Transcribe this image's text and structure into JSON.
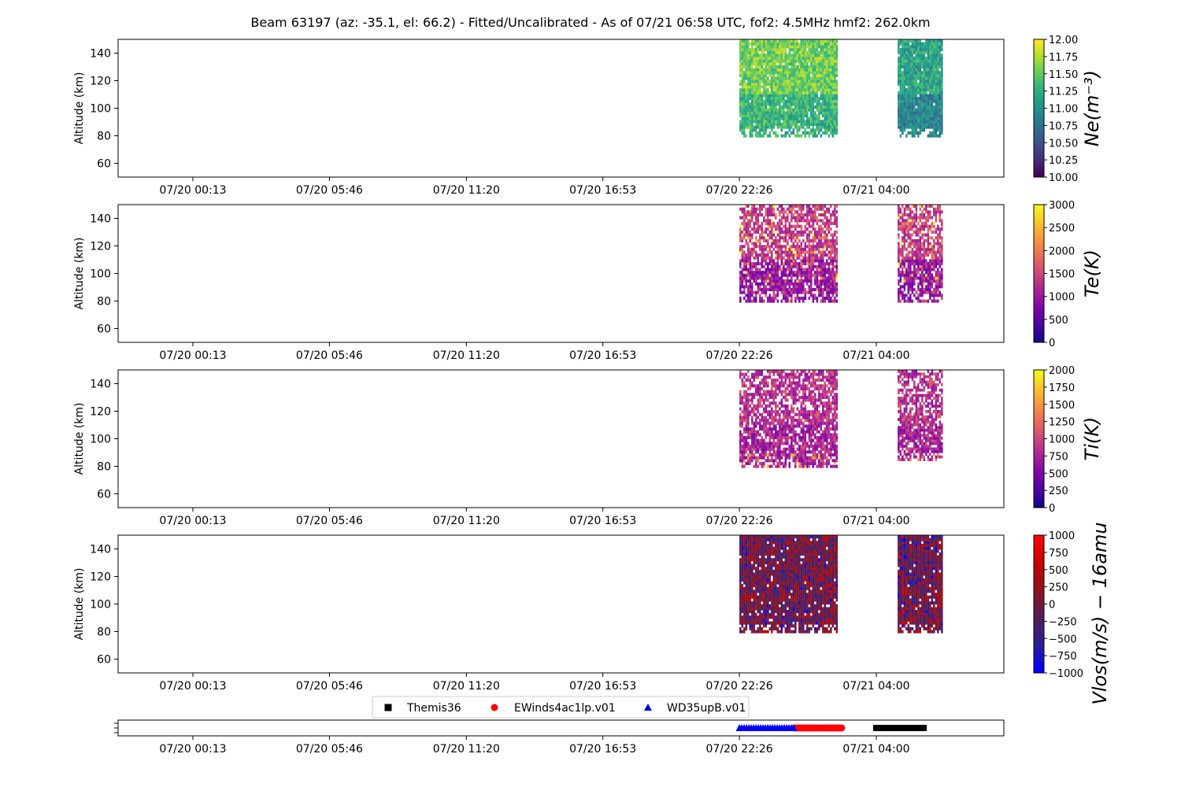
{
  "title": "Beam 63197 (az: -35.1, el: 66.2) - Fitted/Uncalibrated - As of 07/21 06:58 UTC, fof2: 4.5MHz  hmf2: 262.0km",
  "chart_data": [
    {
      "type": "heatmap",
      "ylabel": "Altitude (km)",
      "ylim": [
        50,
        150
      ],
      "yticks": [
        60,
        80,
        100,
        120,
        140
      ],
      "x_range": [
        "07/19 19:55",
        "07/21 08:15"
      ],
      "xticks": [
        "07/20 00:13",
        "07/20 05:46",
        "07/20 11:20",
        "07/20 16:53",
        "07/20 22:26",
        "07/21 04:00"
      ],
      "data_blocks": [
        {
          "x": [
            "07/20 22:26",
            "07/21 02:26"
          ],
          "y": [
            79,
            150
          ]
        },
        {
          "x": [
            "07/21 04:52",
            "07/21 06:40"
          ],
          "y": [
            79,
            150
          ]
        }
      ],
      "colorbar": {
        "label": "Ne(m⁻³)",
        "range": [
          10.0,
          12.0
        ],
        "ticks": [
          "10.00",
          "10.25",
          "10.50",
          "10.75",
          "11.00",
          "11.25",
          "11.50",
          "11.75",
          "12.00"
        ],
        "colormap": "viridis"
      }
    },
    {
      "type": "heatmap",
      "ylabel": "Altitude (km)",
      "ylim": [
        50,
        150
      ],
      "yticks": [
        60,
        80,
        100,
        120,
        140
      ],
      "xticks": [
        "07/20 00:13",
        "07/20 05:46",
        "07/20 11:20",
        "07/20 16:53",
        "07/20 22:26",
        "07/21 04:00"
      ],
      "data_blocks": [
        {
          "x": [
            "07/20 22:26",
            "07/21 02:26"
          ],
          "y": [
            79,
            150
          ]
        },
        {
          "x": [
            "07/21 04:52",
            "07/21 06:40"
          ],
          "y": [
            79,
            150
          ]
        }
      ],
      "colorbar": {
        "label": "Te(K)",
        "range": [
          0,
          3000
        ],
        "ticks": [
          "0",
          "500",
          "1000",
          "1500",
          "2000",
          "2500",
          "3000"
        ],
        "colormap": "plasma"
      }
    },
    {
      "type": "heatmap",
      "ylabel": "Altitude (km)",
      "ylim": [
        50,
        150
      ],
      "yticks": [
        60,
        80,
        100,
        120,
        140
      ],
      "xticks": [
        "07/20 00:13",
        "07/20 05:46",
        "07/20 11:20",
        "07/20 16:53",
        "07/20 22:26",
        "07/21 04:00"
      ],
      "data_blocks": [
        {
          "x": [
            "07/20 22:26",
            "07/21 02:26"
          ],
          "y": [
            79,
            150
          ]
        },
        {
          "x": [
            "07/21 04:52",
            "07/21 06:40"
          ],
          "y": [
            84,
            150
          ]
        }
      ],
      "colorbar": {
        "label": "Ti(K)",
        "range": [
          0,
          2000
        ],
        "ticks": [
          "0",
          "250",
          "500",
          "750",
          "1000",
          "1250",
          "1500",
          "1750",
          "2000"
        ],
        "colormap": "plasma"
      }
    },
    {
      "type": "heatmap",
      "ylabel": "Altitude (km)",
      "ylim": [
        50,
        150
      ],
      "yticks": [
        60,
        80,
        100,
        120,
        140
      ],
      "xticks": [
        "07/20 00:13",
        "07/20 05:46",
        "07/20 11:20",
        "07/20 16:53",
        "07/20 22:26",
        "07/21 04:00"
      ],
      "data_blocks": [
        {
          "x": [
            "07/20 22:26",
            "07/21 02:26"
          ],
          "y": [
            79,
            150
          ]
        },
        {
          "x": [
            "07/21 04:52",
            "07/21 06:40"
          ],
          "y": [
            79,
            150
          ]
        }
      ],
      "colorbar": {
        "label": "Vlos(m/s) − 16amu",
        "range": [
          -1000,
          1000
        ],
        "ticks": [
          "−1000",
          "−750",
          "−500",
          "−250",
          "0",
          "250",
          "500",
          "750",
          "1000"
        ],
        "colormap": "bwr-dark"
      }
    },
    {
      "type": "scatter",
      "xticks": [
        "07/20 00:13",
        "07/20 05:46",
        "07/20 11:20",
        "07/20 16:53",
        "07/20 22:26",
        "07/21 04:00"
      ],
      "legend": {
        "placement": "top-center",
        "entries": [
          "Themis36",
          "EWinds4ac1lp.v01",
          "WD35upB.v01"
        ]
      },
      "series": [
        {
          "name": "Themis36",
          "marker": "square",
          "color": "#000000",
          "x_span": [
            "07/21 04:00",
            "07/21 06:00"
          ]
        },
        {
          "name": "EWinds4ac1lp.v01",
          "marker": "circle",
          "color": "#ff0000",
          "x_span": [
            "07/21 00:40",
            "07/21 02:40"
          ]
        },
        {
          "name": "WD35upB.v01",
          "marker": "triangle",
          "color": "#0000ff",
          "x_span": [
            "07/20 22:26",
            "07/21 00:40"
          ]
        }
      ]
    }
  ]
}
